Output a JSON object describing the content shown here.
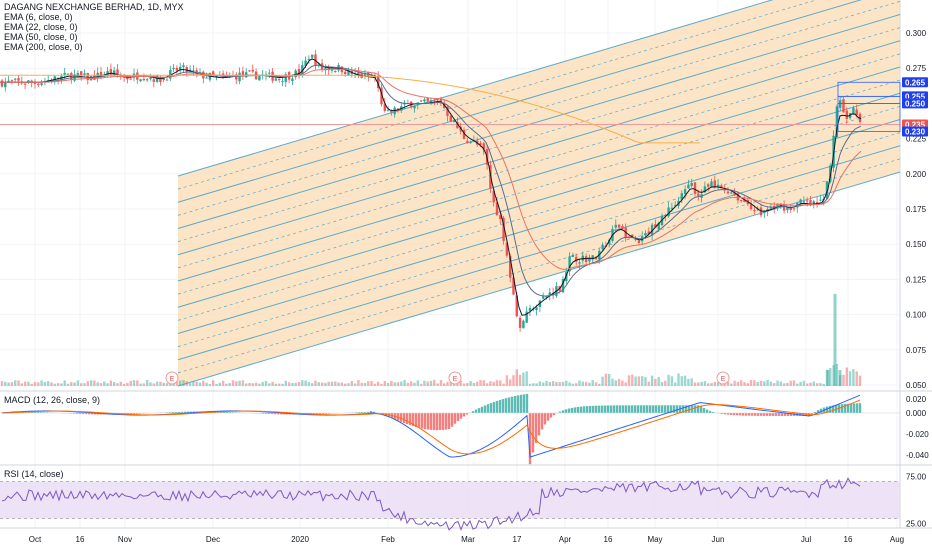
{
  "colors": {
    "up": "#26a69a",
    "down": "#ef5350",
    "ema6": "#131722",
    "ema22": "#5b6b8c",
    "ema50": "#e57368",
    "ema200": "#f5b04a",
    "channel_fill": "#fbdcb4",
    "channel_line": "#4aa3c8",
    "hline": "#ef9a9a",
    "macd": "#2962ff",
    "signal": "#ff6d00",
    "rsi": "#7e57c2",
    "rsi_band": "#eadcf4",
    "tag_blue": "#1e3ef0",
    "tag_red": "#ef5350"
  },
  "legend": {
    "title": "DAGANG NEXCHANGE BERHAD, 1D, MYX",
    "ema6": "EMA (6, close, 0)",
    "ema22": "EMA (22, close, 0)",
    "ema50": "EMA (50, close, 0)",
    "ema200": "EMA (200, close, 0)"
  },
  "macd_label": "MACD (12, 26, close, 9)",
  "rsi_label": "RSI (14, close)",
  "events_marker": "E",
  "chart_data": {
    "type": "candlestick",
    "title": "DAGANG NEXCHANGE BERHAD, 1D, MYX",
    "y_axis": {
      "ticks": [
        "0.300",
        "0.275",
        "0.250",
        "0.225",
        "0.200",
        "0.175",
        "0.150",
        "0.125",
        "0.100",
        "0.075",
        "0.050"
      ],
      "ylim": [
        0.05,
        0.3
      ]
    },
    "x_axis": {
      "ticks": [
        "Oct",
        "16",
        "Nov",
        "Dec",
        "2020",
        "Feb",
        "Mar",
        "17",
        "Apr",
        "16",
        "May",
        "Jun",
        "Jul",
        "16",
        "Aug"
      ]
    },
    "price_tags": [
      {
        "value": "0.265",
        "style": "blue"
      },
      {
        "value": "0.255",
        "style": "blue"
      },
      {
        "value": "0.250",
        "style": "blue"
      },
      {
        "value": "0.235",
        "style": "red"
      },
      {
        "value": "0.230",
        "style": "blue"
      }
    ],
    "horizontal_line": 0.235,
    "close_path": [
      [
        0,
        0.265
      ],
      [
        40,
        0.265
      ],
      [
        70,
        0.27
      ],
      [
        90,
        0.268
      ],
      [
        110,
        0.272
      ],
      [
        125,
        0.268
      ],
      [
        140,
        0.27
      ],
      [
        160,
        0.267
      ],
      [
        180,
        0.275
      ],
      [
        200,
        0.27
      ],
      [
        220,
        0.268
      ],
      [
        240,
        0.27
      ],
      [
        260,
        0.27
      ],
      [
        280,
        0.268
      ],
      [
        300,
        0.272
      ],
      [
        310,
        0.285
      ],
      [
        320,
        0.275
      ],
      [
        340,
        0.275
      ],
      [
        355,
        0.27
      ],
      [
        375,
        0.268
      ],
      [
        385,
        0.242
      ],
      [
        395,
        0.245
      ],
      [
        410,
        0.25
      ],
      [
        425,
        0.25
      ],
      [
        440,
        0.252
      ],
      [
        450,
        0.24
      ],
      [
        465,
        0.225
      ],
      [
        475,
        0.222
      ],
      [
        485,
        0.215
      ],
      [
        492,
        0.182
      ],
      [
        500,
        0.168
      ],
      [
        505,
        0.15
      ],
      [
        510,
        0.13
      ],
      [
        515,
        0.108
      ],
      [
        520,
        0.09
      ],
      [
        525,
        0.1
      ],
      [
        532,
        0.105
      ],
      [
        540,
        0.11
      ],
      [
        550,
        0.115
      ],
      [
        560,
        0.12
      ],
      [
        570,
        0.14
      ],
      [
        580,
        0.14
      ],
      [
        595,
        0.14
      ],
      [
        605,
        0.15
      ],
      [
        612,
        0.16
      ],
      [
        620,
        0.162
      ],
      [
        628,
        0.155
      ],
      [
        640,
        0.152
      ],
      [
        650,
        0.16
      ],
      [
        660,
        0.168
      ],
      [
        670,
        0.175
      ],
      [
        680,
        0.182
      ],
      [
        690,
        0.192
      ],
      [
        700,
        0.185
      ],
      [
        710,
        0.192
      ],
      [
        720,
        0.19
      ],
      [
        730,
        0.188
      ],
      [
        740,
        0.182
      ],
      [
        750,
        0.178
      ],
      [
        760,
        0.172
      ],
      [
        770,
        0.175
      ],
      [
        780,
        0.178
      ],
      [
        790,
        0.175
      ],
      [
        800,
        0.18
      ],
      [
        810,
        0.178
      ],
      [
        822,
        0.18
      ],
      [
        828,
        0.195
      ],
      [
        833,
        0.225
      ],
      [
        838,
        0.255
      ],
      [
        843,
        0.242
      ],
      [
        848,
        0.24
      ],
      [
        853,
        0.245
      ],
      [
        858,
        0.238
      ]
    ],
    "volume_spikes": [
      [
        835,
        0.115
      ],
      [
        828,
        0.02
      ],
      [
        840,
        0.02
      ]
    ],
    "series": [
      {
        "name": "EMA (6, close, 0)"
      },
      {
        "name": "EMA (22, close, 0)"
      },
      {
        "name": "EMA (50, close, 0)"
      },
      {
        "name": "EMA (200, close, 0)"
      }
    ],
    "macd_ticks": [
      "0.020",
      "0.000",
      "-0.020",
      "-0.040"
    ],
    "rsi_ticks": [
      "75.00",
      "25.00"
    ]
  }
}
